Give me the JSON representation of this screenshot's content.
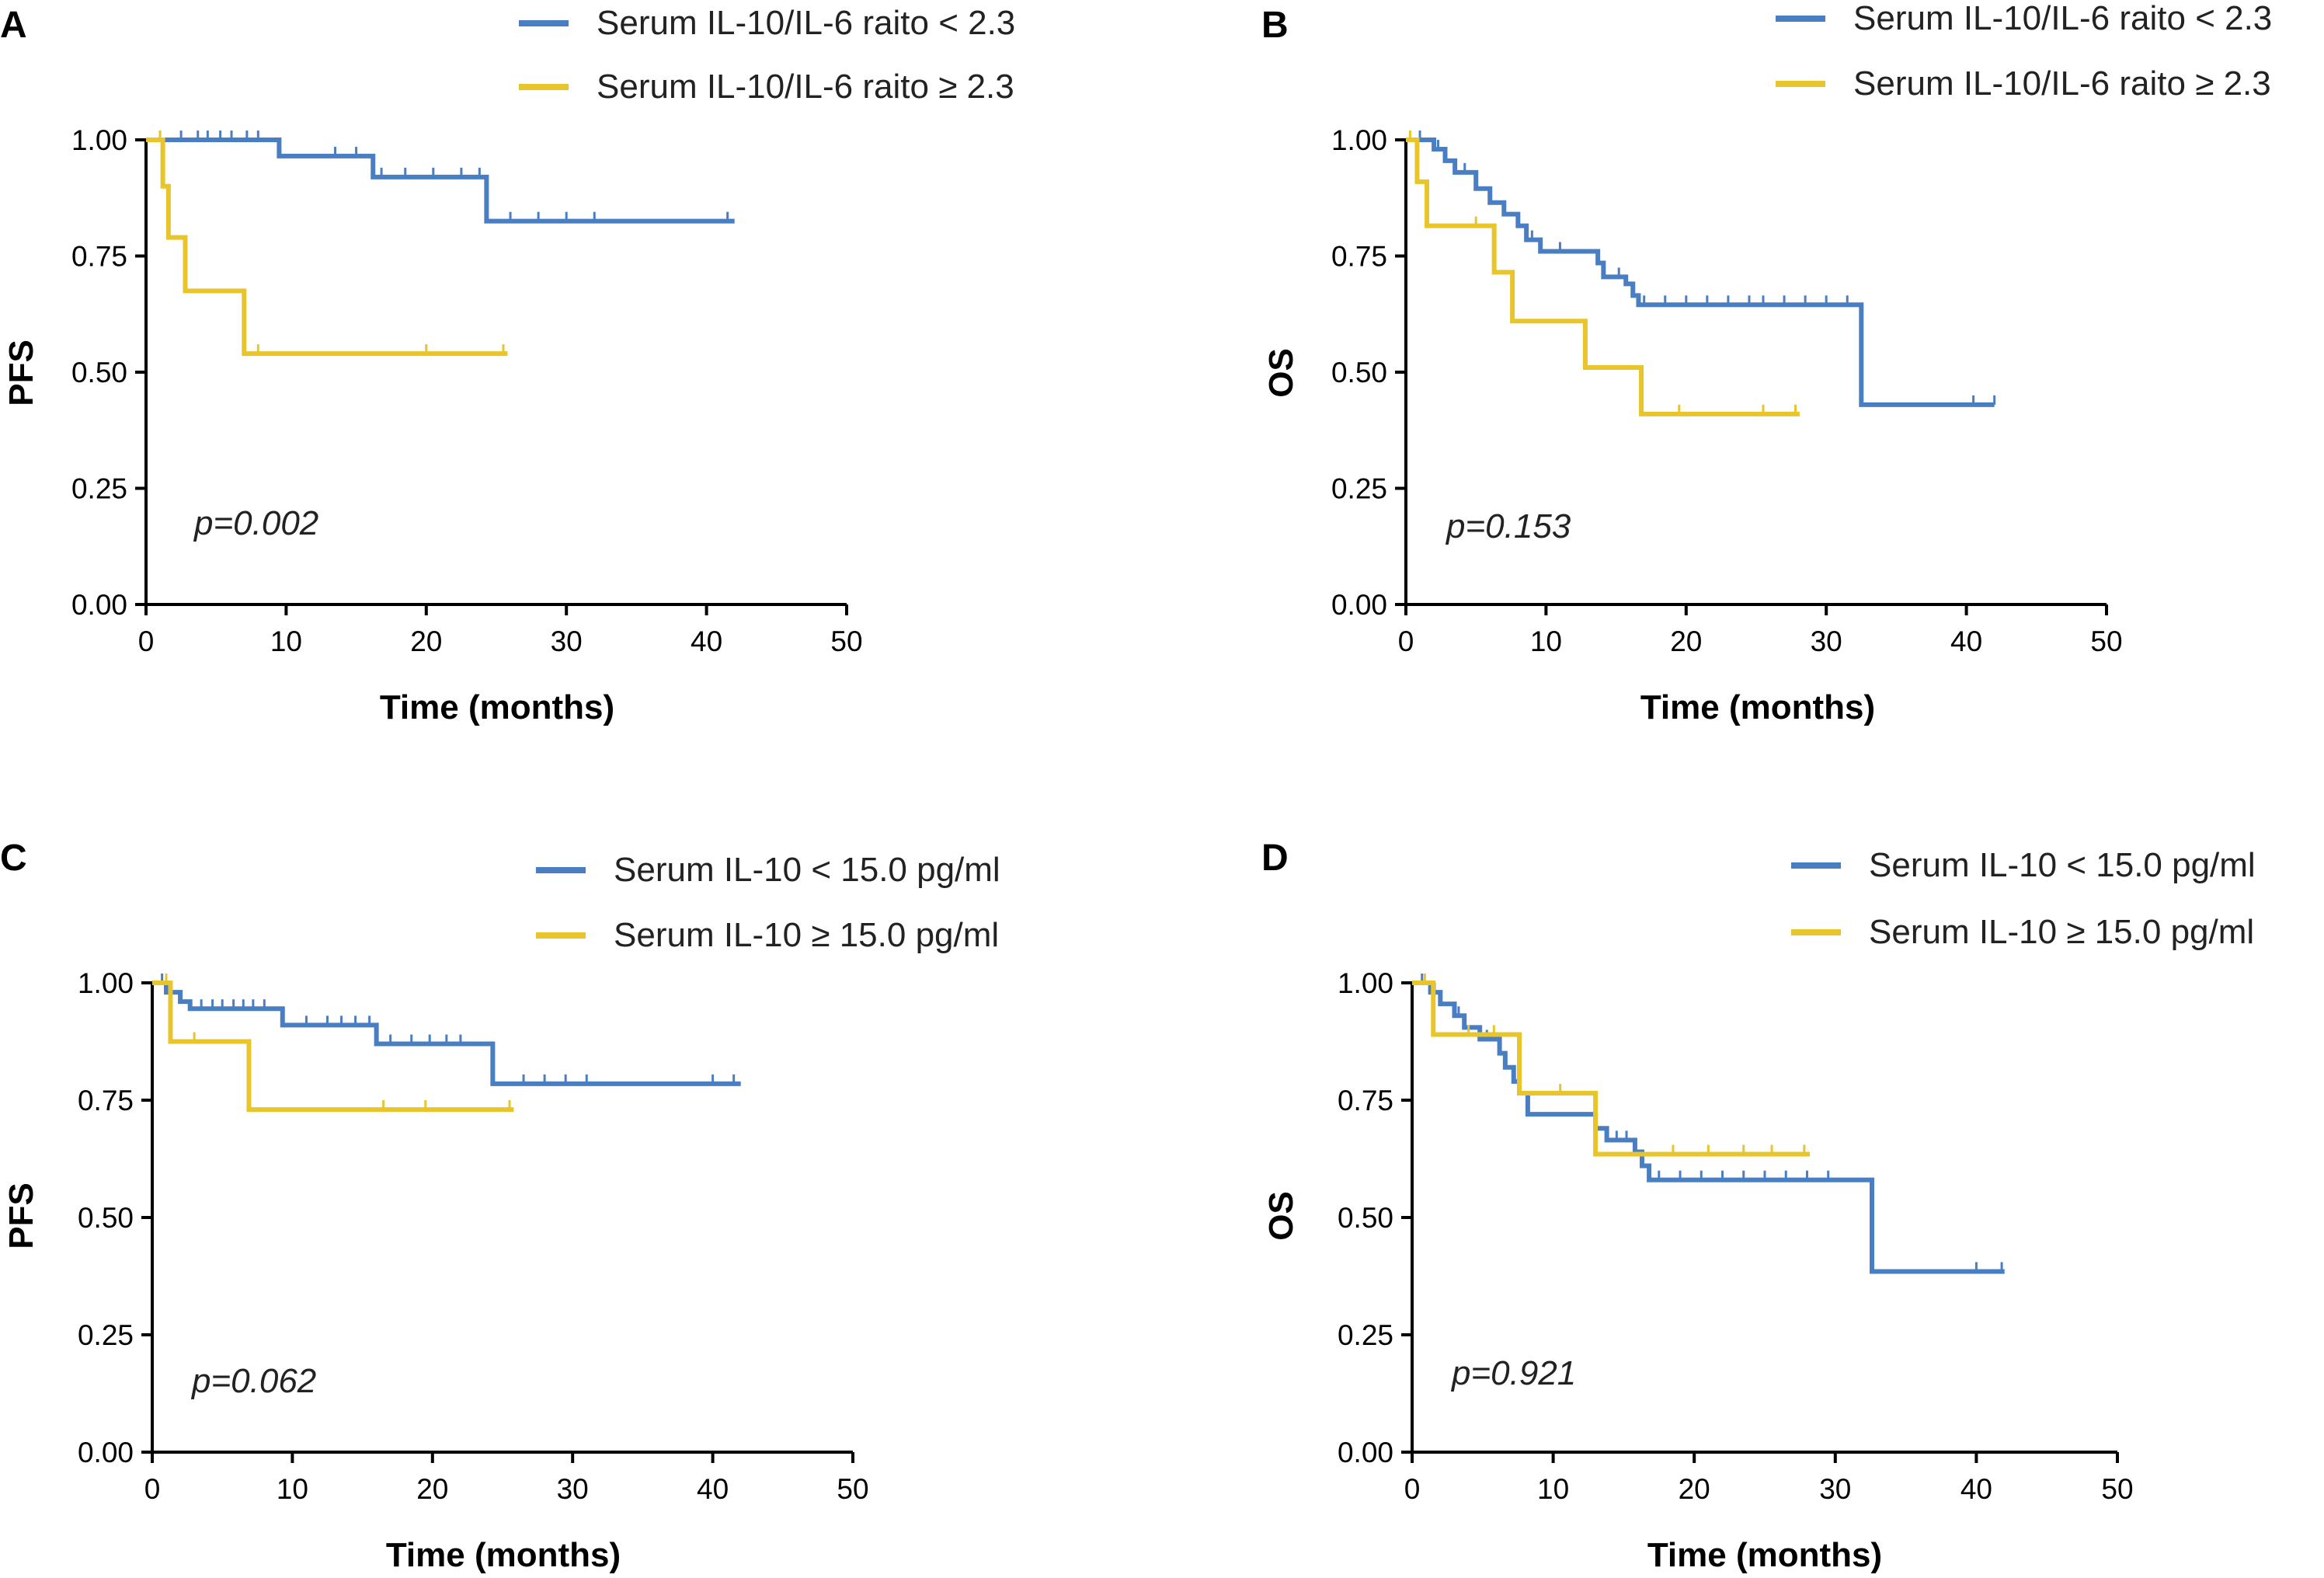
{
  "colors": {
    "low": "#4a7ec2",
    "high": "#e8c52a",
    "axis": "#000000"
  },
  "chart_data": [
    {
      "panel": "A",
      "type": "line",
      "subtype": "kaplan-meier",
      "xlabel": "Time (months)",
      "ylabel": "PFS",
      "xlim": [
        0,
        50
      ],
      "ylim": [
        0,
        1
      ],
      "xticks": [
        "0",
        "10",
        "20",
        "30",
        "40",
        "50"
      ],
      "yticks": [
        "0.00",
        "0.25",
        "0.50",
        "0.75",
        "1.00"
      ],
      "pvalue": "p=0.002",
      "legend": "top-right",
      "series": [
        {
          "name": "Serum IL-10/IL-6 raito < 2.3",
          "color": "low",
          "steps": [
            [
              0,
              1.0
            ],
            [
              9.5,
              0.965
            ],
            [
              16.2,
              0.92
            ],
            [
              24.3,
              0.825
            ],
            [
              42,
              0.825
            ]
          ],
          "censors": [
            [
              1,
              1.0
            ],
            [
              2.5,
              1.0
            ],
            [
              3.7,
              1.0
            ],
            [
              4.4,
              1.0
            ],
            [
              5.3,
              1.0
            ],
            [
              6.1,
              1.0
            ],
            [
              7.2,
              1.0
            ],
            [
              8.0,
              1.0
            ],
            [
              13.5,
              0.965
            ],
            [
              15.0,
              0.965
            ],
            [
              16.8,
              0.92
            ],
            [
              18.5,
              0.92
            ],
            [
              20.5,
              0.92
            ],
            [
              22.5,
              0.92
            ],
            [
              23.8,
              0.92
            ],
            [
              26.0,
              0.825
            ],
            [
              28.0,
              0.825
            ],
            [
              30.0,
              0.825
            ],
            [
              32.0,
              0.825
            ],
            [
              41.5,
              0.825
            ]
          ]
        },
        {
          "name": "Serum IL-10/IL-6 raito ≥ 2.3",
          "color": "high",
          "steps": [
            [
              0,
              1.0
            ],
            [
              1.2,
              0.9
            ],
            [
              1.6,
              0.79
            ],
            [
              2.8,
              0.675
            ],
            [
              7.0,
              0.54
            ],
            [
              25.8,
              0.54
            ]
          ],
          "censors": [
            [
              1.0,
              1.0
            ],
            [
              8.0,
              0.54
            ],
            [
              20.0,
              0.54
            ],
            [
              25.5,
              0.54
            ]
          ]
        }
      ]
    },
    {
      "panel": "B",
      "type": "line",
      "subtype": "kaplan-meier",
      "xlabel": "Time (months)",
      "ylabel": "OS",
      "xlim": [
        0,
        50
      ],
      "ylim": [
        0,
        1
      ],
      "xticks": [
        "0",
        "10",
        "20",
        "30",
        "40",
        "50"
      ],
      "yticks": [
        "0.00",
        "0.25",
        "0.50",
        "0.75",
        "1.00"
      ],
      "pvalue": "p=0.153",
      "legend": "top-right",
      "series": [
        {
          "name": "Serum IL-10/IL-6 raito < 2.3",
          "color": "low",
          "steps": [
            [
              0,
              1.0
            ],
            [
              2.0,
              0.98
            ],
            [
              2.8,
              0.955
            ],
            [
              3.5,
              0.93
            ],
            [
              5.0,
              0.895
            ],
            [
              6.0,
              0.865
            ],
            [
              7.0,
              0.84
            ],
            [
              8.0,
              0.815
            ],
            [
              8.6,
              0.785
            ],
            [
              9.6,
              0.76
            ],
            [
              13.7,
              0.735
            ],
            [
              14.1,
              0.705
            ],
            [
              15.7,
              0.69
            ],
            [
              16.2,
              0.665
            ],
            [
              16.6,
              0.645
            ],
            [
              32.5,
              0.43
            ],
            [
              42,
              0.43
            ]
          ],
          "censors": [
            [
              1.0,
              1.0
            ],
            [
              2.3,
              0.98
            ],
            [
              4.2,
              0.93
            ],
            [
              9.0,
              0.785
            ],
            [
              11.0,
              0.76
            ],
            [
              15.2,
              0.705
            ],
            [
              17.0,
              0.645
            ],
            [
              18.5,
              0.645
            ],
            [
              20.0,
              0.645
            ],
            [
              21.5,
              0.645
            ],
            [
              23.0,
              0.645
            ],
            [
              24.5,
              0.645
            ],
            [
              25.5,
              0.645
            ],
            [
              27.0,
              0.645
            ],
            [
              28.5,
              0.645
            ],
            [
              30.0,
              0.645
            ],
            [
              31.5,
              0.645
            ],
            [
              40.5,
              0.43
            ],
            [
              42.0,
              0.43
            ]
          ]
        },
        {
          "name": "Serum IL-10/IL-6 raito ≥ 2.3",
          "color": "high",
          "steps": [
            [
              0,
              1.0
            ],
            [
              0.8,
              0.91
            ],
            [
              1.5,
              0.815
            ],
            [
              6.3,
              0.715
            ],
            [
              7.6,
              0.61
            ],
            [
              12.8,
              0.51
            ],
            [
              16.8,
              0.41
            ],
            [
              28.1,
              0.41
            ]
          ],
          "censors": [
            [
              0.3,
              1.0
            ],
            [
              5.0,
              0.815
            ],
            [
              19.5,
              0.41
            ],
            [
              25.5,
              0.41
            ],
            [
              27.8,
              0.41
            ]
          ]
        }
      ]
    },
    {
      "panel": "C",
      "type": "line",
      "subtype": "kaplan-meier",
      "xlabel": "Time (months)",
      "ylabel": "PFS",
      "xlim": [
        0,
        50
      ],
      "ylim": [
        0,
        1
      ],
      "xticks": [
        "0",
        "10",
        "20",
        "30",
        "40",
        "50"
      ],
      "yticks": [
        "0.00",
        "0.25",
        "0.50",
        "0.75",
        "1.00"
      ],
      "pvalue": "p=0.062",
      "legend": "top-right",
      "series": [
        {
          "name": "Serum IL-10 < 15.0 pg/ml",
          "color": "low",
          "steps": [
            [
              0,
              1.0
            ],
            [
              1.0,
              0.98
            ],
            [
              2.0,
              0.96
            ],
            [
              2.7,
              0.945
            ],
            [
              9.3,
              0.91
            ],
            [
              16.0,
              0.87
            ],
            [
              24.3,
              0.785
            ],
            [
              42,
              0.785
            ]
          ],
          "censors": [
            [
              0.7,
              1.0
            ],
            [
              1.3,
              0.98
            ],
            [
              3.5,
              0.945
            ],
            [
              4.3,
              0.945
            ],
            [
              5.0,
              0.945
            ],
            [
              5.8,
              0.945
            ],
            [
              6.5,
              0.945
            ],
            [
              7.2,
              0.945
            ],
            [
              8.0,
              0.945
            ],
            [
              11.0,
              0.91
            ],
            [
              12.5,
              0.91
            ],
            [
              13.5,
              0.91
            ],
            [
              14.5,
              0.91
            ],
            [
              15.5,
              0.91
            ],
            [
              17.0,
              0.87
            ],
            [
              18.5,
              0.87
            ],
            [
              19.8,
              0.87
            ],
            [
              21.0,
              0.87
            ],
            [
              22.0,
              0.87
            ],
            [
              26.5,
              0.785
            ],
            [
              28.0,
              0.785
            ],
            [
              29.5,
              0.785
            ],
            [
              31.0,
              0.785
            ],
            [
              40.0,
              0.785
            ],
            [
              41.5,
              0.785
            ]
          ]
        },
        {
          "name": "Serum IL-10 ≥ 15.0 pg/ml",
          "color": "high",
          "steps": [
            [
              0,
              1.0
            ],
            [
              1.3,
              0.875
            ],
            [
              6.9,
              0.73
            ],
            [
              25.8,
              0.73
            ]
          ],
          "censors": [
            [
              1.0,
              1.0
            ],
            [
              3.0,
              0.875
            ],
            [
              16.5,
              0.73
            ],
            [
              19.5,
              0.73
            ],
            [
              25.5,
              0.73
            ]
          ]
        }
      ]
    },
    {
      "panel": "D",
      "type": "line",
      "subtype": "kaplan-meier",
      "xlabel": "Time (months)",
      "ylabel": "OS",
      "xlim": [
        0,
        50
      ],
      "ylim": [
        0,
        1
      ],
      "xticks": [
        "0",
        "10",
        "20",
        "30",
        "40",
        "50"
      ],
      "yticks": [
        "0.00",
        "0.25",
        "0.50",
        "0.75",
        "1.00"
      ],
      "pvalue": "p=0.921",
      "legend": "top-right",
      "series": [
        {
          "name": "Serum IL-10 < 15.0 pg/ml",
          "color": "low",
          "steps": [
            [
              0,
              1.0
            ],
            [
              1.3,
              0.98
            ],
            [
              2.0,
              0.955
            ],
            [
              3.0,
              0.93
            ],
            [
              3.7,
              0.905
            ],
            [
              4.8,
              0.88
            ],
            [
              6.2,
              0.85
            ],
            [
              6.6,
              0.82
            ],
            [
              7.2,
              0.79
            ],
            [
              7.6,
              0.765
            ],
            [
              8.2,
              0.72
            ],
            [
              13.0,
              0.69
            ],
            [
              13.8,
              0.665
            ],
            [
              15.8,
              0.64
            ],
            [
              16.3,
              0.61
            ],
            [
              16.8,
              0.58
            ],
            [
              32.6,
              0.385
            ],
            [
              42,
              0.385
            ]
          ],
          "censors": [
            [
              0.7,
              1.0
            ],
            [
              1.6,
              0.98
            ],
            [
              3.3,
              0.93
            ],
            [
              5.3,
              0.88
            ],
            [
              14.5,
              0.665
            ],
            [
              15.2,
              0.665
            ],
            [
              17.5,
              0.58
            ],
            [
              19.0,
              0.58
            ],
            [
              20.5,
              0.58
            ],
            [
              22.0,
              0.58
            ],
            [
              23.5,
              0.58
            ],
            [
              25.0,
              0.58
            ],
            [
              26.5,
              0.58
            ],
            [
              28.0,
              0.58
            ],
            [
              29.5,
              0.58
            ],
            [
              40.0,
              0.385
            ],
            [
              41.8,
              0.385
            ]
          ]
        },
        {
          "name": "Serum IL-10 ≥ 15.0 pg/ml",
          "color": "high",
          "steps": [
            [
              0,
              1.0
            ],
            [
              1.5,
              0.89
            ],
            [
              7.6,
              0.765
            ],
            [
              13.0,
              0.635
            ],
            [
              28.2,
              0.635
            ]
          ],
          "censors": [
            [
              0.9,
              1.0
            ],
            [
              4.0,
              0.89
            ],
            [
              5.8,
              0.89
            ],
            [
              10.5,
              0.765
            ],
            [
              18.5,
              0.635
            ],
            [
              21.0,
              0.635
            ],
            [
              23.5,
              0.635
            ],
            [
              25.5,
              0.635
            ],
            [
              27.8,
              0.635
            ]
          ]
        }
      ]
    }
  ]
}
